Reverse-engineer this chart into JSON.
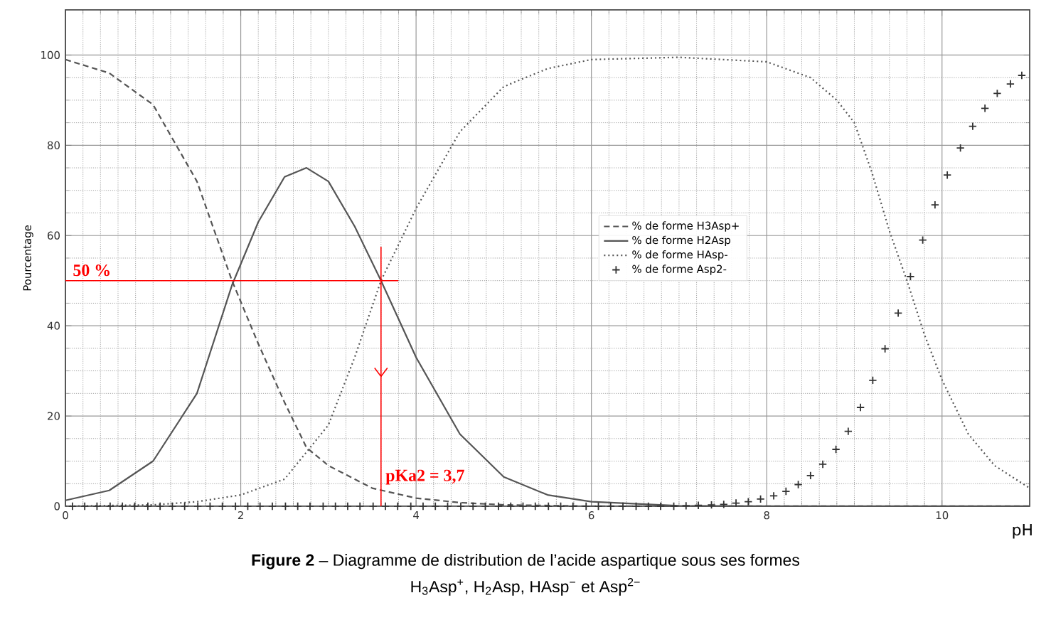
{
  "chart_data": {
    "type": "line",
    "title": "**Figure 2** – Diagramme de distribution de l’acide aspartique sous ses formes",
    "subtitle": "H$_{3}$Asp$^{+}$, H$_{2}$Asp, HAsp$^{−}$ et Asp$^{2−}$",
    "xlabel": "pH",
    "ylabel": "Pourcentage",
    "xlim": [
      0,
      11
    ],
    "ylim": [
      0,
      110
    ],
    "xticks": [
      0,
      2,
      4,
      6,
      8,
      10
    ],
    "yticks": [
      0,
      20,
      40,
      60,
      80,
      100
    ],
    "grid": true,
    "legend": "center",
    "series": [
      {
        "name": "% de forme H3Asp+",
        "color": "#555555",
        "line_style": "dashed",
        "marker": "none",
        "x": [
          0,
          0.5,
          1,
          1.5,
          1.9,
          2.2,
          2.5,
          2.75,
          3,
          3.5,
          4,
          4.5,
          5,
          6,
          8,
          11
        ],
        "values": [
          99,
          96,
          89,
          72,
          50,
          36,
          23,
          13,
          9,
          4,
          1.8,
          0.8,
          0.3,
          0,
          0,
          0
        ]
      },
      {
        "name": "% de forme H2Asp",
        "color": "#555555",
        "line_style": "solid",
        "marker": "none",
        "x": [
          0,
          0.5,
          1,
          1.5,
          1.9,
          2.2,
          2.5,
          2.75,
          3,
          3.3,
          3.6,
          4,
          4.5,
          5,
          5.5,
          6,
          7,
          8,
          11
        ],
        "values": [
          1.3,
          3.5,
          10,
          25,
          49,
          63,
          73,
          75,
          72,
          62,
          50,
          33,
          16,
          6.5,
          2.5,
          1,
          0.1,
          0,
          0
        ]
      },
      {
        "name": "% de forme HAsp-",
        "color": "#555555",
        "line_style": "dotted",
        "marker": "none",
        "x": [
          0,
          1,
          1.5,
          2,
          2.5,
          2.75,
          3,
          3.3,
          3.6,
          4,
          4.5,
          5,
          5.5,
          6,
          7,
          8,
          8.5,
          8.8,
          9,
          9.2,
          9.4,
          9.6,
          9.8,
          10,
          10.3,
          10.6,
          11
        ],
        "values": [
          0,
          0.3,
          1,
          2.5,
          6,
          12,
          18,
          33,
          50,
          66,
          83,
          93,
          97,
          99,
          99.5,
          98.5,
          95,
          90,
          85,
          74,
          61,
          50,
          38,
          28,
          16,
          9,
          4
        ]
      },
      {
        "name": "% de forme Asp2-",
        "type": "scatter",
        "color": "#333333",
        "marker": "cross",
        "x": [
          0.08,
          0.22,
          0.36,
          0.51,
          0.65,
          0.79,
          0.94,
          1.08,
          1.22,
          1.36,
          1.51,
          1.65,
          1.79,
          1.94,
          2.08,
          2.22,
          2.36,
          2.51,
          2.65,
          2.79,
          2.94,
          3.08,
          3.22,
          3.36,
          3.51,
          3.65,
          3.79,
          3.94,
          4.08,
          4.22,
          4.36,
          4.51,
          4.65,
          4.79,
          4.94,
          5.08,
          5.22,
          5.36,
          5.51,
          5.65,
          5.79,
          5.94,
          6.08,
          6.22,
          6.36,
          6.51,
          6.65,
          6.79,
          6.94,
          7.08,
          7.22,
          7.37,
          7.51,
          7.65,
          7.79,
          7.93,
          8.08,
          8.22,
          8.36,
          8.5,
          8.64,
          8.79,
          8.93,
          9.07,
          9.21,
          9.35,
          9.5,
          9.64,
          9.78,
          9.92,
          10.06,
          10.21,
          10.35,
          10.49,
          10.63,
          10.78,
          10.91
        ],
        "values": [
          0,
          0,
          0,
          0,
          0,
          0,
          0,
          0,
          0,
          0,
          0,
          0,
          0,
          0,
          0,
          0,
          0,
          0,
          0,
          0,
          0,
          0,
          0,
          0,
          0,
          0,
          0,
          0,
          0,
          0,
          0,
          0,
          0,
          0,
          0,
          0,
          0,
          0,
          0,
          0,
          0,
          0,
          0,
          0,
          0,
          0,
          0,
          0,
          0,
          0.1,
          0.2,
          0.3,
          0.4,
          0.7,
          1.0,
          1.6,
          2.3,
          3.3,
          4.8,
          6.8,
          9.3,
          12.6,
          16.6,
          21.9,
          27.9,
          34.9,
          42.8,
          50.9,
          59.0,
          66.8,
          73.4,
          79.4,
          84.2,
          88.2,
          91.5,
          93.6,
          95.5
        ]
      }
    ],
    "ref_lines": [
      {
        "axis": "y",
        "value": 50,
        "label": "50 %",
        "color": "#ff0000"
      },
      {
        "axis": "x",
        "value": 3.6,
        "color": "#ff0000"
      }
    ],
    "annotations": [
      "pKa2 = 3,7"
    ]
  }
}
